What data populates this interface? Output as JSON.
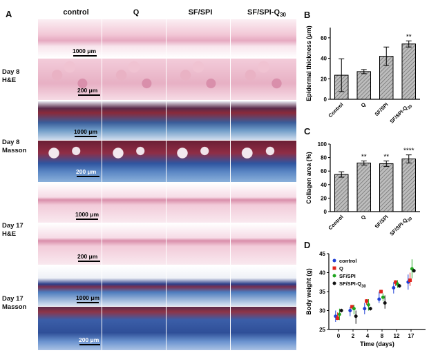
{
  "panel_labels": {
    "a": "A",
    "b": "B",
    "c": "C",
    "d": "D"
  },
  "column_headers": [
    "control",
    "Q",
    "SF/SPI",
    "SF/SPI-Q30"
  ],
  "row_labels": [
    {
      "line1": "Day 8",
      "line2": "H&E"
    },
    {
      "line1": "Day 8",
      "line2": "Masson"
    },
    {
      "line1": "Day 17",
      "line2": "H&E"
    },
    {
      "line1": "Day 17",
      "line2": "Masson"
    }
  ],
  "scale_labels": {
    "um1000": "1000 μm",
    "um200": "200 μm"
  },
  "chart_data": [
    {
      "type": "bar",
      "id": "B",
      "title": "",
      "categories": [
        "Control",
        "Q",
        "SF/SPI",
        "SF/SPI-Q30"
      ],
      "values": [
        23.5,
        27,
        42,
        54
      ],
      "errors": [
        16,
        2,
        9,
        3
      ],
      "significance": [
        "",
        "",
        "",
        "**"
      ],
      "ylabel": "Epidermal thickness (μm)",
      "ylim": [
        0,
        70
      ],
      "yticks": [
        "0",
        "20",
        "40",
        "60"
      ]
    },
    {
      "type": "bar",
      "id": "C",
      "title": "",
      "categories": [
        "Control",
        "Q",
        "SF/SPI",
        "SF/SPI-Q30"
      ],
      "values": [
        55,
        72,
        71,
        78
      ],
      "errors": [
        4,
        3,
        4,
        6
      ],
      "significance": [
        "",
        "**",
        "**",
        "****"
      ],
      "ylabel": "Collagen area (%)",
      "ylim": [
        0,
        100
      ],
      "yticks": [
        "0",
        "20",
        "40",
        "60",
        "80",
        "100"
      ]
    },
    {
      "type": "scatter",
      "id": "D",
      "xlabel": "Time (days)",
      "ylabel": "Body weight (g)",
      "xlim": [
        -2,
        18
      ],
      "ylim": [
        25,
        45
      ],
      "xticks": [
        "0",
        "2",
        "4",
        "8",
        "12",
        "17"
      ],
      "xtick_values": [
        0,
        3,
        6,
        9,
        12,
        15
      ],
      "yticks": [
        "25",
        "30",
        "35",
        "40",
        "45"
      ],
      "series": [
        {
          "name": "control",
          "color": "#1f3fd6",
          "marker": "circle",
          "x": [
            -0.6,
            2.4,
            5.4,
            8.4,
            11.4,
            14.4
          ],
          "y": [
            28.5,
            30,
            30.5,
            33,
            36,
            37.5
          ],
          "lo": [
            27,
            28.5,
            29,
            32,
            34.5,
            35.5
          ],
          "hi": [
            30,
            31,
            32,
            35,
            37.5,
            39.5
          ]
        },
        {
          "name": "Q",
          "color": "#e0231c",
          "marker": "square",
          "x": [
            -0.2,
            2.8,
            5.8,
            8.8,
            11.8,
            14.8
          ],
          "y": [
            28,
            31,
            32.5,
            35,
            37.5,
            38
          ],
          "lo": [
            27.5,
            30.5,
            31.5,
            34.5,
            36.5,
            36.5
          ],
          "hi": [
            29.5,
            31.5,
            33,
            35.5,
            38,
            40
          ]
        },
        {
          "name": "SF/SPI",
          "color": "#1fa51f",
          "marker": "circle",
          "x": [
            0.2,
            3.2,
            6.2,
            9.2,
            12.2,
            15.2
          ],
          "y": [
            29,
            30.5,
            31.5,
            33.5,
            37,
            41
          ],
          "lo": [
            27.5,
            29,
            30,
            32.5,
            36,
            38.5
          ],
          "hi": [
            30.5,
            31.5,
            33,
            34.5,
            38,
            43.5
          ]
        },
        {
          "name": "SF/SPI-Q30",
          "color": "#111111",
          "marker": "circle",
          "x": [
            0.6,
            3.6,
            6.6,
            9.6,
            12.6,
            15.6
          ],
          "y": [
            30,
            28.5,
            30.5,
            32,
            36.5,
            40.5
          ],
          "lo": [
            29.5,
            26.5,
            30,
            30.5,
            36,
            40
          ],
          "hi": [
            30.5,
            30,
            31,
            34,
            37,
            41
          ]
        }
      ]
    }
  ]
}
